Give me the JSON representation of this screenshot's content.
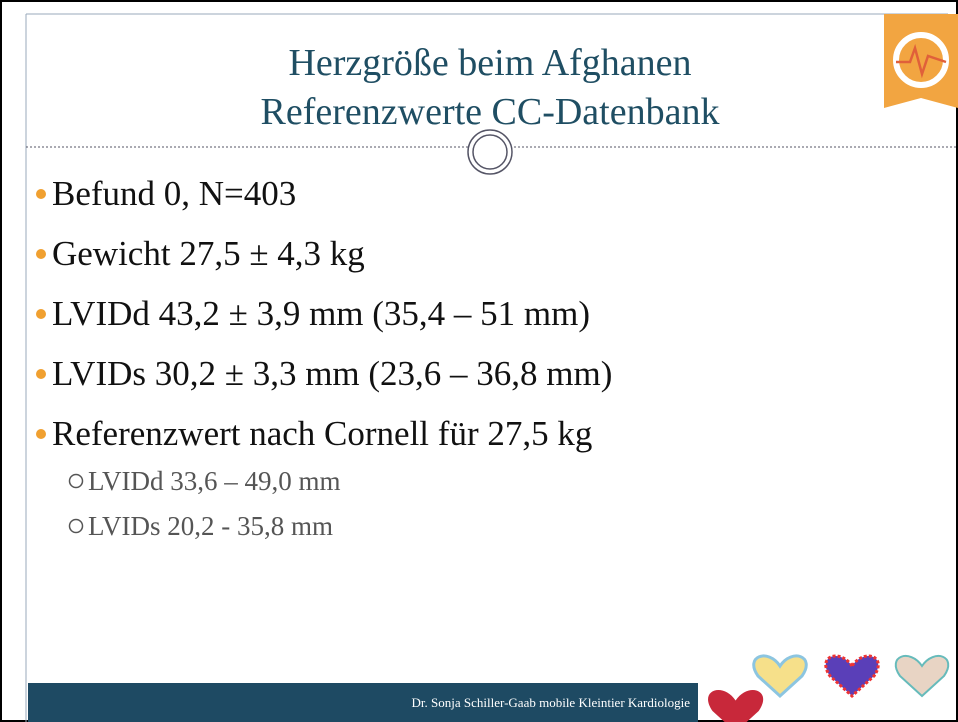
{
  "header": {
    "title": [
      "Herzgröße beim Afghanen",
      "Referenzwerte CC-Datenbank"
    ]
  },
  "bullets": [
    "Befund 0, N=403",
    "Gewicht 27,5 ± 4,3 kg",
    "LVIDd 43,2 ± 3,9 mm (35,4 – 51 mm)",
    "LVIDs 30,2 ± 3,3 mm (23,6 – 36,8 mm)",
    "Referenzwert nach Cornell für 27,5 kg"
  ],
  "sub_bullets": [
    "LVIDd 33,6 – 49,0 mm",
    "LVIDs 20,2 - 35,8 mm"
  ],
  "footer": "Dr. Sonja Schiller-Gaab mobile Kleintier Kardiologie"
}
